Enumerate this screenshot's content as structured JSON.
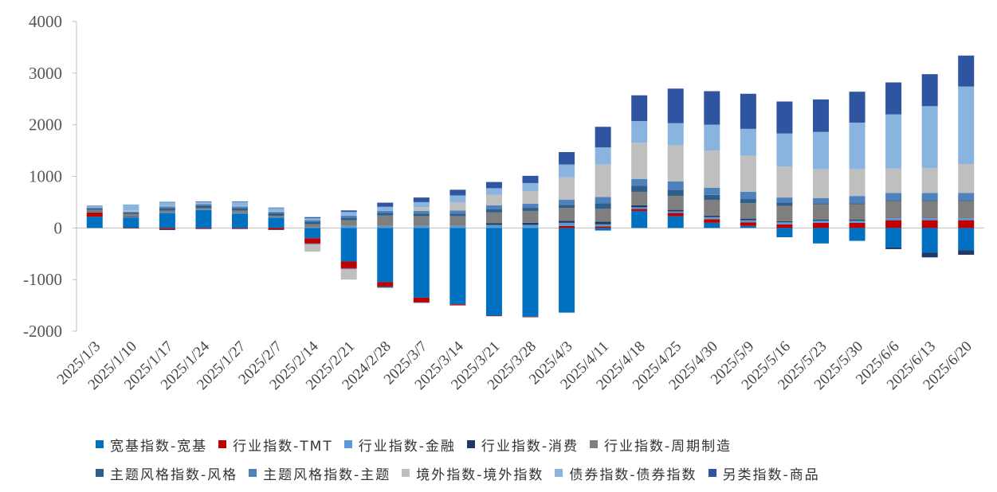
{
  "chart_data": {
    "type": "bar",
    "stacked": true,
    "title": "",
    "xlabel": "",
    "ylabel": "",
    "ylim": [
      -2000,
      4000
    ],
    "yticks": [
      -2000,
      -1000,
      0,
      1000,
      2000,
      3000,
      4000
    ],
    "grid": false,
    "legend_position": "bottom",
    "categories": [
      "2025/1/3",
      "2025/1/10",
      "2025/1/17",
      "2025/1/24",
      "2025/1/27",
      "2025/2/7",
      "2025/2/14",
      "2025/2/21",
      "2024/2/28",
      "2025/3/7",
      "2025/3/14",
      "2025/3/21",
      "2025/3/28",
      "2025/4/3",
      "2025/4/11",
      "2025/4/18",
      "2025/4/25",
      "2025/4/30",
      "2025/5/9",
      "2025/5/16",
      "2025/5/23",
      "2025/5/30",
      "2025/6/6",
      "2025/6/13",
      "2025/6/20"
    ],
    "series": [
      {
        "name": "宽基指数-宽基",
        "color": "#0070c0",
        "values": [
          220,
          200,
          290,
          350,
          280,
          200,
          -200,
          -650,
          -1050,
          -1350,
          -1480,
          -1700,
          -1720,
          -1640,
          -50,
          330,
          230,
          100,
          40,
          -180,
          -300,
          -250,
          -380,
          -480,
          -430
        ]
      },
      {
        "name": "行业指数-TMT",
        "color": "#c00000",
        "values": [
          80,
          -10,
          -20,
          -10,
          -10,
          -30,
          -100,
          -130,
          -80,
          -90,
          -20,
          -10,
          -10,
          40,
          30,
          40,
          60,
          70,
          70,
          70,
          100,
          100,
          150,
          150,
          150
        ]
      },
      {
        "name": "行业指数-金融",
        "color": "#5b9bd5",
        "values": [
          10,
          5,
          5,
          5,
          5,
          5,
          10,
          40,
          40,
          40,
          40,
          60,
          60,
          60,
          40,
          30,
          30,
          40,
          40,
          40,
          40,
          40,
          40,
          40,
          40
        ]
      },
      {
        "name": "行业指数-消费",
        "color": "#1f3864",
        "values": [
          10,
          10,
          -20,
          -10,
          -10,
          -10,
          -10,
          -10,
          -20,
          -10,
          0,
          30,
          40,
          40,
          50,
          40,
          30,
          30,
          30,
          20,
          20,
          20,
          -30,
          -90,
          -90
        ]
      },
      {
        "name": "行业指数-周期制造",
        "color": "#7f7f7f",
        "values": [
          30,
          50,
          40,
          30,
          50,
          30,
          60,
          110,
          200,
          190,
          190,
          210,
          230,
          250,
          250,
          260,
          270,
          300,
          300,
          300,
          300,
          300,
          330,
          330,
          330
        ]
      },
      {
        "name": "主题风格指数-风格",
        "color": "#2e5f8a",
        "values": [
          30,
          30,
          50,
          50,
          50,
          50,
          50,
          50,
          50,
          50,
          50,
          60,
          60,
          60,
          110,
          120,
          120,
          100,
          80,
          60,
          20,
          20,
          20,
          20,
          20
        ]
      },
      {
        "name": "主题风格指数-主题",
        "color": "#4f81bd",
        "values": [
          10,
          20,
          30,
          30,
          30,
          30,
          30,
          40,
          40,
          50,
          60,
          80,
          80,
          100,
          120,
          130,
          160,
          140,
          140,
          100,
          100,
          140,
          140,
          140,
          140
        ]
      },
      {
        "name": "境外指数-境外指数",
        "color": "#bfbfbf",
        "values": [
          0,
          20,
          10,
          10,
          10,
          10,
          -150,
          -210,
          -20,
          70,
          160,
          200,
          240,
          430,
          630,
          700,
          700,
          720,
          700,
          600,
          560,
          520,
          470,
          480,
          560
        ]
      },
      {
        "name": "债券指数-债券指数",
        "color": "#8ab4e0",
        "values": [
          30,
          120,
          70,
          30,
          80,
          60,
          40,
          70,
          80,
          100,
          130,
          130,
          160,
          250,
          330,
          420,
          430,
          500,
          520,
          640,
          720,
          900,
          1050,
          1200,
          1500
        ]
      },
      {
        "name": "另类指数-商品",
        "color": "#2f55a0",
        "values": [
          10,
          0,
          10,
          10,
          10,
          10,
          20,
          30,
          80,
          90,
          110,
          120,
          140,
          240,
          400,
          500,
          670,
          650,
          680,
          620,
          630,
          600,
          620,
          620,
          600
        ]
      }
    ]
  }
}
